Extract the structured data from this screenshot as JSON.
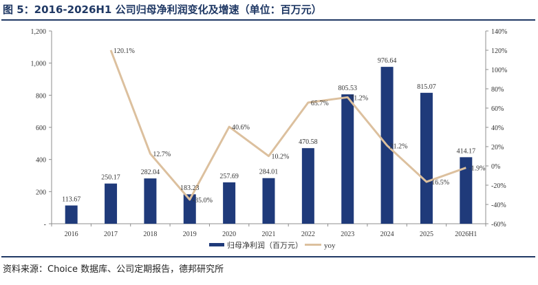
{
  "figure": {
    "title": "图 5：2016-2026H1 公司归母净利润变化及增速（单位：百万元）",
    "source": "资料来源：Choice 数据库、公司定期报告，德邦研究所"
  },
  "colors": {
    "bar": "#1f3a7a",
    "line": "#dcc09e",
    "rule": "#1f3864",
    "axis": "#8c8c8c"
  },
  "chart_data": {
    "type": "bar",
    "categories": [
      "2016",
      "2017",
      "2018",
      "2019",
      "2020",
      "2021",
      "2022",
      "2023",
      "2024",
      "2025",
      "2026H1"
    ],
    "series": [
      {
        "name": "归母净利润（百万元）",
        "type": "bar",
        "axis": "left",
        "values": [
          113.67,
          250.17,
          282.04,
          183.23,
          257.69,
          284.01,
          470.58,
          805.53,
          976.64,
          815.07,
          414.17
        ],
        "labels": [
          "113.67",
          "250.17",
          "282.04",
          "183.23",
          "257.69",
          "284.01",
          "470.58",
          "805.53",
          "976.64",
          "815.07",
          "414.17"
        ]
      },
      {
        "name": "yoy",
        "type": "line",
        "axis": "right",
        "values": [
          null,
          120.1,
          12.7,
          -35.0,
          40.6,
          10.2,
          65.7,
          71.2,
          21.2,
          -16.5,
          -1.9
        ],
        "labels": [
          "",
          "120.1%",
          "12.7%",
          "-35.0%",
          "40.6%",
          "10.2%",
          "65.7%",
          "71.2%",
          "21.2%",
          "-16.5%",
          "-1.9%"
        ]
      }
    ],
    "y_left": {
      "ylim": [
        0,
        1200
      ],
      "ticks": [
        0,
        200,
        400,
        600,
        800,
        1000,
        1200
      ],
      "tick_labels": [
        "-",
        "200",
        "400",
        "600",
        "800",
        "1,000",
        "1,200"
      ]
    },
    "y_right": {
      "ylim": [
        -60,
        140
      ],
      "ticks": [
        -60,
        -40,
        -20,
        0,
        20,
        40,
        60,
        80,
        100,
        120,
        140
      ],
      "tick_labels": [
        "-60%",
        "-40%",
        "-20%",
        "0%",
        "20%",
        "40%",
        "60%",
        "80%",
        "100%",
        "120%",
        "140%"
      ]
    },
    "grid": false,
    "legend_position": "bottom"
  }
}
